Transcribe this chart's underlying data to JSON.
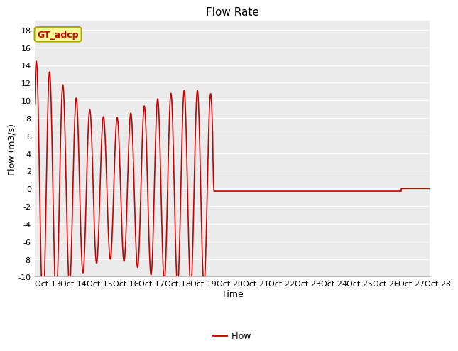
{
  "title": "Flow Rate",
  "xlabel": "Time",
  "ylabel": "Flow (m3/s)",
  "ylim": [
    -10,
    19
  ],
  "xlim": [
    13,
    28.2
  ],
  "yticks": [
    -10,
    -8,
    -6,
    -4,
    -2,
    0,
    2,
    4,
    6,
    8,
    10,
    12,
    14,
    16,
    18
  ],
  "xtick_days": [
    13,
    14,
    15,
    16,
    17,
    18,
    19,
    20,
    21,
    22,
    23,
    24,
    25,
    26,
    27,
    28
  ],
  "line_color": "#cc0000",
  "line_width": 1.2,
  "bg_color": "#ebebeb",
  "fig_color": "#ffffff",
  "annotation_text": "GT_adcp",
  "annotation_bg": "#ffff99",
  "annotation_border": "#aaaa00",
  "legend_label": "Flow",
  "title_fontsize": 11,
  "axis_label_fontsize": 9,
  "tick_fontsize": 8,
  "flat_value": -0.3,
  "flat_start": 19.85,
  "flat_end": 27.1
}
